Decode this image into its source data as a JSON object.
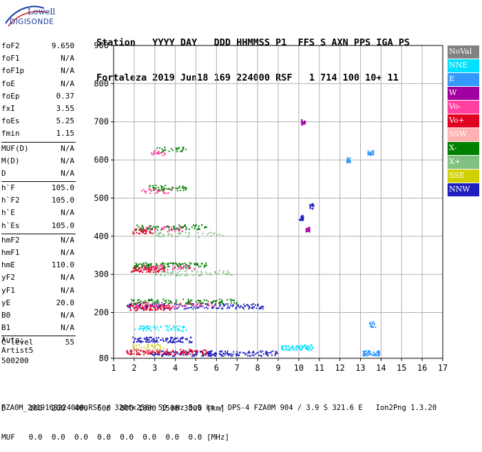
{
  "logo": {
    "top": "Lowell",
    "bottom": "DIGISONDE"
  },
  "header": {
    "line1": "Station   YYYY DAY   DDD HHMMSS P1  FFS S AXN PPS IGA PS",
    "line2": "Fortaleza 2019 Jun18 169 224000 RSF   1 714 100 10+ 11"
  },
  "params": [
    {
      "group": 1,
      "name": "foF2",
      "value": "9.650"
    },
    {
      "group": 1,
      "name": "foF1",
      "value": "N/A"
    },
    {
      "group": 1,
      "name": "foF1p",
      "value": "N/A"
    },
    {
      "group": 1,
      "name": "foE",
      "value": "N/A"
    },
    {
      "group": 1,
      "name": "foEp",
      "value": "0.37"
    },
    {
      "group": 1,
      "name": "fxI",
      "value": "3.55"
    },
    {
      "group": 1,
      "name": "foEs",
      "value": "5.25"
    },
    {
      "group": 1,
      "name": "fmin",
      "value": "1.15"
    },
    {
      "group": 2,
      "name": "MUF(D)",
      "value": "N/A"
    },
    {
      "group": 2,
      "name": "M(D)",
      "value": "N/A"
    },
    {
      "group": 2,
      "name": "D",
      "value": "N/A"
    },
    {
      "group": 3,
      "name": "h`F",
      "value": "105.0"
    },
    {
      "group": 3,
      "name": "h`F2",
      "value": "105.0"
    },
    {
      "group": 3,
      "name": "h`E",
      "value": "N/A"
    },
    {
      "group": 3,
      "name": "h`Es",
      "value": "105.0"
    },
    {
      "group": 4,
      "name": "hmF2",
      "value": "N/A"
    },
    {
      "group": 4,
      "name": "hmF1",
      "value": "N/A"
    },
    {
      "group": 4,
      "name": "hmE",
      "value": "110.0"
    },
    {
      "group": 4,
      "name": "yF2",
      "value": "N/A"
    },
    {
      "group": 4,
      "name": "yF1",
      "value": "N/A"
    },
    {
      "group": 4,
      "name": "yE",
      "value": "20.0"
    },
    {
      "group": 4,
      "name": "B0",
      "value": "N/A"
    },
    {
      "group": 4,
      "name": "B1",
      "value": "N/A"
    },
    {
      "group": 5,
      "name": "C-level",
      "value": "55"
    }
  ],
  "auto": {
    "line1": "Auto:",
    "line2": "Artist5",
    "line3": "500200"
  },
  "legend": [
    {
      "label": "NoVal",
      "color": "#808080"
    },
    {
      "label": "NNE",
      "color": "#00e0ff"
    },
    {
      "label": "E",
      "color": "#3399ff"
    },
    {
      "label": "W",
      "color": "#a000a0"
    },
    {
      "label": "Vo-",
      "color": "#ff40a0"
    },
    {
      "label": "Vo+",
      "color": "#e00020"
    },
    {
      "label": "SSW",
      "color": "#ffb0b0"
    },
    {
      "label": "X-",
      "color": "#008000"
    },
    {
      "label": "X+",
      "color": "#80c080"
    },
    {
      "label": "SSE",
      "color": "#d0d000"
    },
    {
      "label": "NNW",
      "color": "#2020c0"
    }
  ],
  "footer": {
    "line1": "D     100  200  400  600  800 1000 1500 3000 [km]",
    "line2": "MUF   0.0  0.0  0.0  0.0  0.0  0.0  0.0  0.0 [MHz]",
    "line3": "FZA0M_2019169224000.RSF / 320fx256h 50 kHz 5.0 km / DPS-4 FZA0M 904 / 3.9 S 321.6 E   Ion2Png 1.3.20"
  },
  "chart_data": {
    "type": "scatter",
    "xlim": [
      1,
      17
    ],
    "ylim": [
      80,
      900
    ],
    "xticks": [
      1,
      2,
      3,
      4,
      5,
      6,
      7,
      8,
      9,
      10,
      11,
      12,
      13,
      14,
      15,
      16,
      17
    ],
    "yticks": [
      80,
      200,
      300,
      400,
      500,
      600,
      700,
      800,
      900
    ],
    "grid": true,
    "series": [
      {
        "name": "NNW",
        "color": "#2020c0",
        "traces": [
          {
            "x0": 2.8,
            "x1": 9.1,
            "y": 94,
            "n": 220
          },
          {
            "x0": 1.9,
            "x1": 4.8,
            "y": 130,
            "n": 110
          },
          {
            "x0": 1.6,
            "x1": 8.3,
            "y": 218,
            "n": 170
          },
          {
            "x0": 10.0,
            "x1": 10.2,
            "y": 450,
            "n": 25
          },
          {
            "x0": 10.5,
            "x1": 10.7,
            "y": 480,
            "n": 20
          }
        ]
      },
      {
        "name": "E",
        "color": "#3399ff",
        "traces": [
          {
            "x0": 13.1,
            "x1": 13.9,
            "y": 95,
            "n": 60
          },
          {
            "x0": 12.3,
            "x1": 12.5,
            "y": 600,
            "n": 25
          },
          {
            "x0": 13.3,
            "x1": 13.6,
            "y": 620,
            "n": 30
          },
          {
            "x0": 13.4,
            "x1": 13.7,
            "y": 170,
            "n": 20
          }
        ]
      },
      {
        "name": "NNE",
        "color": "#00e0ff",
        "traces": [
          {
            "x0": 9.1,
            "x1": 10.7,
            "y": 110,
            "n": 70
          },
          {
            "x0": 2.0,
            "x1": 4.5,
            "y": 160,
            "n": 60
          }
        ]
      },
      {
        "name": "Vo+",
        "color": "#e00020",
        "traces": [
          {
            "x0": 1.6,
            "x1": 5.5,
            "y": 98,
            "n": 120
          },
          {
            "x0": 1.7,
            "x1": 3.8,
            "y": 214,
            "n": 90
          },
          {
            "x0": 1.8,
            "x1": 3.5,
            "y": 314,
            "n": 80
          },
          {
            "x0": 1.9,
            "x1": 2.9,
            "y": 414,
            "n": 40
          }
        ]
      },
      {
        "name": "Vo-",
        "color": "#ff40a0",
        "traces": [
          {
            "x0": 1.8,
            "x1": 6.0,
            "y": 222,
            "n": 80
          },
          {
            "x0": 2.0,
            "x1": 5.0,
            "y": 320,
            "n": 70
          },
          {
            "x0": 2.2,
            "x1": 4.5,
            "y": 420,
            "n": 45
          },
          {
            "x0": 2.3,
            "x1": 3.8,
            "y": 520,
            "n": 30
          },
          {
            "x0": 2.8,
            "x1": 3.5,
            "y": 620,
            "n": 18
          }
        ]
      },
      {
        "name": "W",
        "color": "#a000a0",
        "traces": [
          {
            "x0": 10.1,
            "x1": 10.3,
            "y": 700,
            "n": 25
          },
          {
            "x0": 10.3,
            "x1": 10.5,
            "y": 420,
            "n": 20
          }
        ]
      },
      {
        "name": "X-",
        "color": "#008000",
        "traces": [
          {
            "x0": 1.8,
            "x1": 7.0,
            "y": 230,
            "n": 110
          },
          {
            "x0": 1.9,
            "x1": 5.5,
            "y": 325,
            "n": 100
          },
          {
            "x0": 2.0,
            "x1": 5.5,
            "y": 425,
            "n": 70
          },
          {
            "x0": 2.6,
            "x1": 4.5,
            "y": 528,
            "n": 45
          },
          {
            "x0": 3.0,
            "x1": 4.5,
            "y": 628,
            "n": 25
          }
        ]
      },
      {
        "name": "X+",
        "color": "#80c080",
        "traces": [
          {
            "x0": 3.0,
            "x1": 7.0,
            "y": 305,
            "n": 60
          },
          {
            "x0": 3.0,
            "x1": 6.5,
            "y": 405,
            "n": 40
          }
        ]
      },
      {
        "name": "SSE",
        "color": "#d0d000",
        "traces": [
          {
            "x0": 1.9,
            "x1": 3.5,
            "y": 112,
            "n": 30
          }
        ]
      }
    ]
  }
}
